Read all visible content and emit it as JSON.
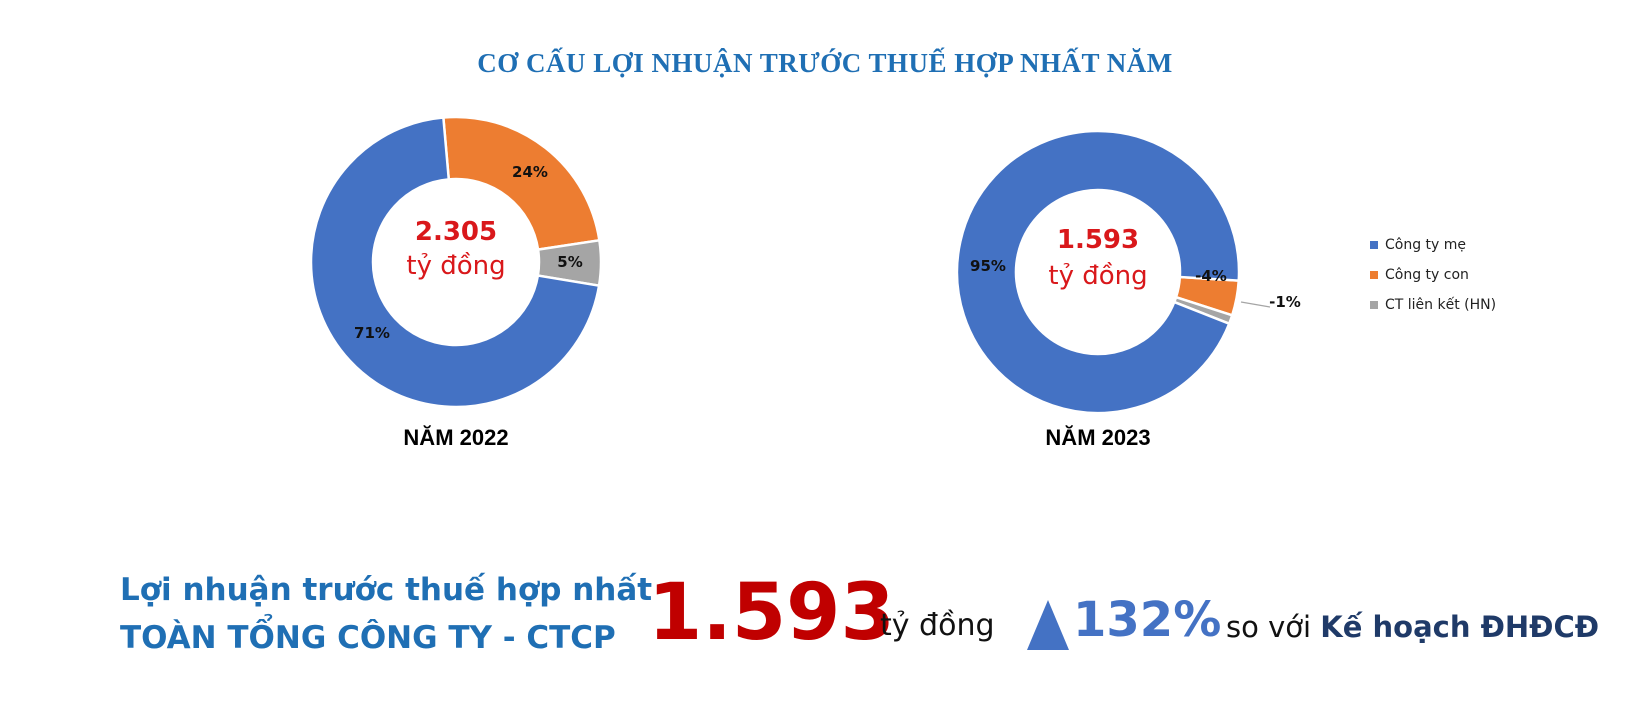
{
  "title": "CƠ CẤU LỢI NHUẬN TRƯỚC THUẾ HỢP NHẤT NĂM",
  "colors": {
    "parent": "#4472c4",
    "subsidiary": "#ed7d31",
    "associate": "#a5a5a5",
    "center_text": "#d9181b",
    "title": "#1f6fb4",
    "big_number": "#c00000"
  },
  "chart_data": [
    {
      "type": "pie",
      "subtype": "donut",
      "title": "NĂM 2022",
      "center_value": "2.305",
      "center_unit": "tỷ đồng",
      "categories": [
        "Công ty mẹ",
        "Công ty con",
        "CT liên kết (HN)"
      ],
      "values": [
        71,
        24,
        5
      ],
      "labels": [
        "71%",
        "24%",
        "5%"
      ]
    },
    {
      "type": "pie",
      "subtype": "donut",
      "title": "NĂM 2023",
      "center_value": "1.593",
      "center_unit": "tỷ đồng",
      "categories": [
        "Công ty mẹ",
        "Công ty con",
        "CT liên kết (HN)"
      ],
      "values": [
        95,
        -4,
        -1
      ],
      "labels": [
        "95%",
        "-4%",
        "-1%"
      ]
    }
  ],
  "legend": {
    "placement": "right",
    "items": [
      "Công ty mẹ",
      "Công ty con",
      "CT liên kết (HN)"
    ]
  },
  "summary": {
    "line1": "Lợi nhuận trước thuế hợp nhất",
    "line2": "TOÀN TỔNG CÔNG TY - CTCP",
    "value": "1.593",
    "unit": "tỷ đồng",
    "growth": "132%",
    "compare_prefix": "so với",
    "compare_target": "Kế hoạch ĐHĐCĐ"
  }
}
